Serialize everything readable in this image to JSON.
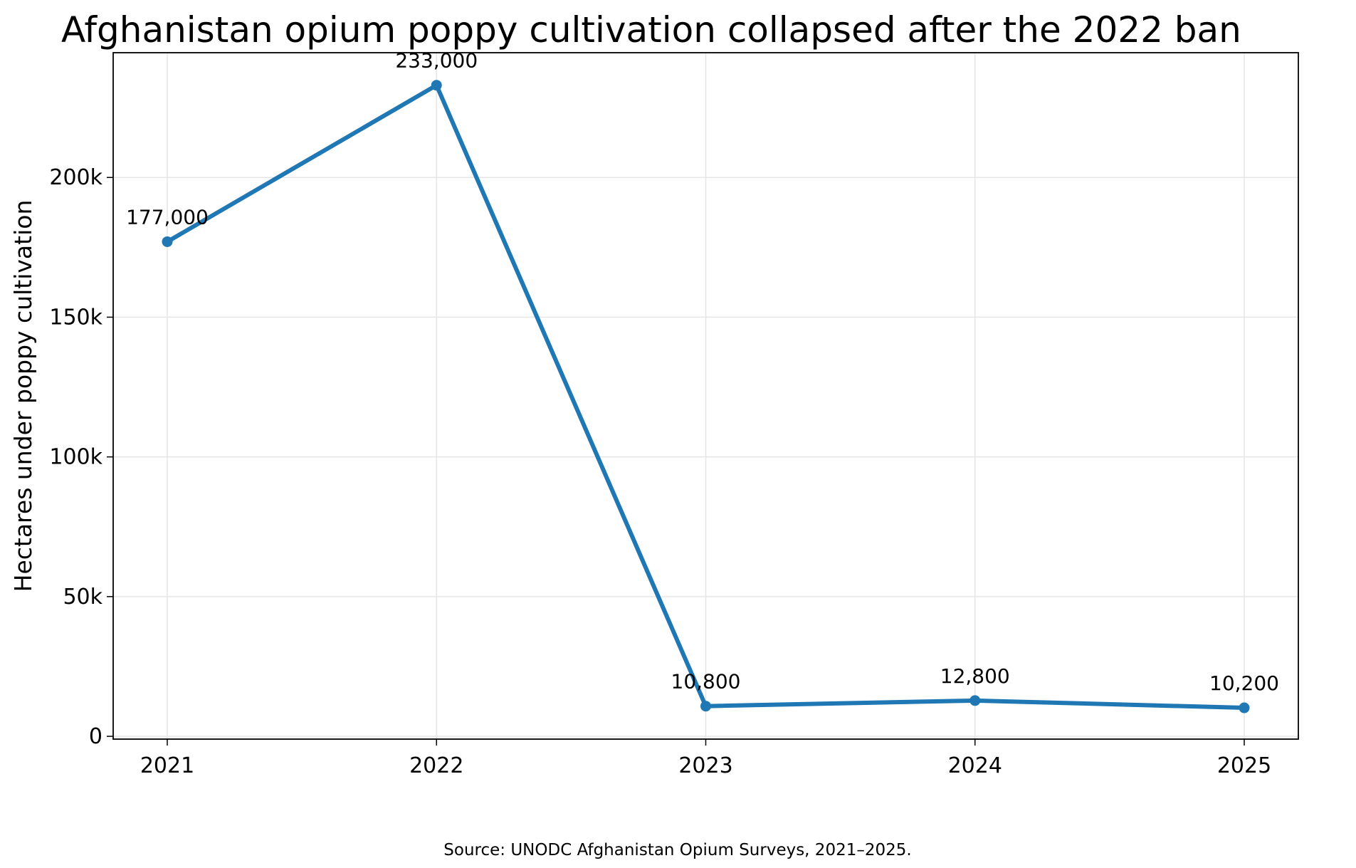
{
  "chart_data": {
    "type": "line",
    "title": "Afghanistan opium poppy cultivation collapsed after the 2022 ban",
    "xlabel": "",
    "ylabel": "Hectares under poppy cultivation",
    "categories": [
      "2021",
      "2022",
      "2023",
      "2024",
      "2025"
    ],
    "series": [
      {
        "values": [
          177000,
          233000,
          10800,
          12800,
          10200
        ],
        "color": "#1f77b4"
      }
    ],
    "data_labels": [
      "177,000",
      "233,000",
      "10,800",
      "12,800",
      "10,200"
    ],
    "y_ticks": [
      0,
      50000,
      100000,
      150000,
      200000
    ],
    "y_tick_labels": [
      "0",
      "50k",
      "100k",
      "150k",
      "200k"
    ],
    "ylim": [
      -1000,
      244650
    ],
    "grid": true,
    "legend": "none"
  },
  "footer": {
    "source": "Source: UNODC Afghanistan Opium Surveys, 2021–2025."
  }
}
